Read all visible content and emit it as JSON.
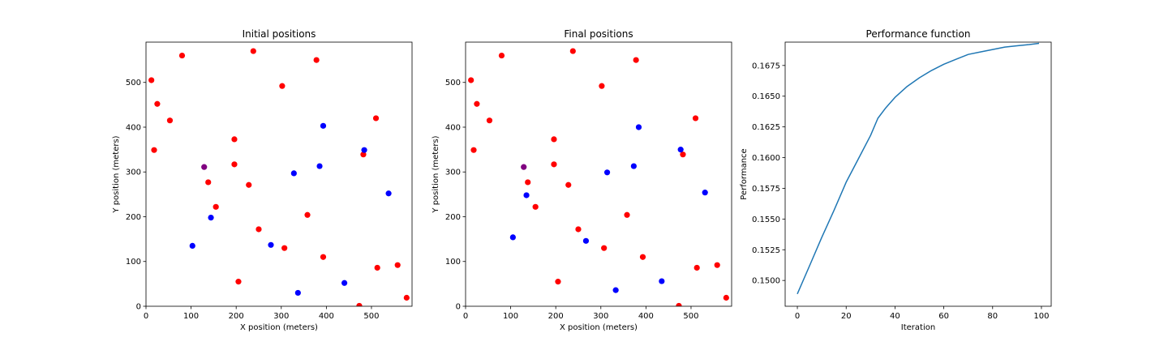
{
  "chart_data": [
    {
      "type": "scatter",
      "title": "Initial positions",
      "xlabel": "X position (meters)",
      "ylabel": "Y position (meters)",
      "xlim": [
        0,
        590
      ],
      "ylim": [
        0,
        590
      ],
      "xticks": [
        0,
        100,
        200,
        300,
        400,
        500
      ],
      "yticks": [
        0,
        100,
        200,
        300,
        400,
        500
      ],
      "grid": false,
      "series": [
        {
          "color": "#ff0000",
          "points": [
            [
              12,
              505
            ],
            [
              25,
              452
            ],
            [
              53,
              415
            ],
            [
              18,
              349
            ],
            [
              80,
              560
            ],
            [
              238,
              570
            ],
            [
              378,
              550
            ],
            [
              302,
              492
            ],
            [
              510,
              420
            ],
            [
              196,
              373
            ],
            [
              196,
              317
            ],
            [
              138,
              277
            ],
            [
              228,
              271
            ],
            [
              155,
              222
            ],
            [
              250,
              172
            ],
            [
              358,
              204
            ],
            [
              307,
              130
            ],
            [
              393,
              110
            ],
            [
              482,
              339
            ],
            [
              513,
              86
            ],
            [
              558,
              92
            ],
            [
              205,
              55
            ],
            [
              473,
              1
            ],
            [
              578,
              19
            ]
          ]
        },
        {
          "color": "#0000ff",
          "points": [
            [
              393,
              403
            ],
            [
              484,
              349
            ],
            [
              328,
              297
            ],
            [
              385,
              313
            ],
            [
              538,
              252
            ],
            [
              144,
              198
            ],
            [
              103,
              135
            ],
            [
              277,
              137
            ],
            [
              337,
              30
            ],
            [
              440,
              52
            ]
          ]
        },
        {
          "color": "#800080",
          "points": [
            [
              129,
              311
            ]
          ]
        }
      ]
    },
    {
      "type": "scatter",
      "title": "Final positions",
      "xlabel": "X position (meters)",
      "ylabel": "Y position (meters)",
      "xlim": [
        0,
        590
      ],
      "ylim": [
        0,
        590
      ],
      "xticks": [
        0,
        100,
        200,
        300,
        400,
        500
      ],
      "yticks": [
        0,
        100,
        200,
        300,
        400,
        500
      ],
      "grid": false,
      "series": [
        {
          "color": "#ff0000",
          "points": [
            [
              12,
              505
            ],
            [
              25,
              452
            ],
            [
              53,
              415
            ],
            [
              18,
              349
            ],
            [
              80,
              560
            ],
            [
              238,
              570
            ],
            [
              378,
              550
            ],
            [
              302,
              492
            ],
            [
              510,
              420
            ],
            [
              196,
              373
            ],
            [
              196,
              317
            ],
            [
              138,
              277
            ],
            [
              228,
              271
            ],
            [
              155,
              222
            ],
            [
              250,
              172
            ],
            [
              358,
              204
            ],
            [
              307,
              130
            ],
            [
              393,
              110
            ],
            [
              482,
              339
            ],
            [
              513,
              86
            ],
            [
              558,
              92
            ],
            [
              205,
              55
            ],
            [
              473,
              1
            ],
            [
              578,
              19
            ]
          ]
        },
        {
          "color": "#0000ff",
          "points": [
            [
              384,
              400
            ],
            [
              477,
              350
            ],
            [
              314,
              299
            ],
            [
              373,
              313
            ],
            [
              531,
              254
            ],
            [
              135,
              248
            ],
            [
              105,
              154
            ],
            [
              267,
              146
            ],
            [
              333,
              36
            ],
            [
              435,
              56
            ]
          ]
        },
        {
          "color": "#800080",
          "points": [
            [
              129,
              311
            ]
          ]
        }
      ]
    },
    {
      "type": "line",
      "title": "Performance function",
      "xlabel": "Iteration",
      "ylabel": "Performance",
      "xlim": [
        -5,
        104
      ],
      "ylim": [
        0.1479,
        0.1694
      ],
      "xticks": [
        0,
        20,
        40,
        60,
        80,
        100
      ],
      "yticks": [
        "0.1500",
        "0.1525",
        "0.1550",
        "0.1575",
        "0.1600",
        "0.1625",
        "0.1650",
        "0.1675"
      ],
      "grid": false,
      "series": [
        {
          "color": "#1f77b4",
          "x": [
            0,
            5,
            10,
            15,
            20,
            25,
            30,
            33,
            36,
            40,
            45,
            50,
            55,
            60,
            65,
            70,
            75,
            80,
            85,
            90,
            95,
            99
          ],
          "y": [
            0.1489,
            0.1512,
            0.1535,
            0.1557,
            0.158,
            0.1599,
            0.1618,
            0.1632,
            0.164,
            0.1649,
            0.1658,
            0.1665,
            0.1671,
            0.1676,
            0.168,
            0.1684,
            0.1686,
            0.1688,
            0.169,
            0.1691,
            0.1692,
            0.1693
          ]
        }
      ]
    }
  ]
}
